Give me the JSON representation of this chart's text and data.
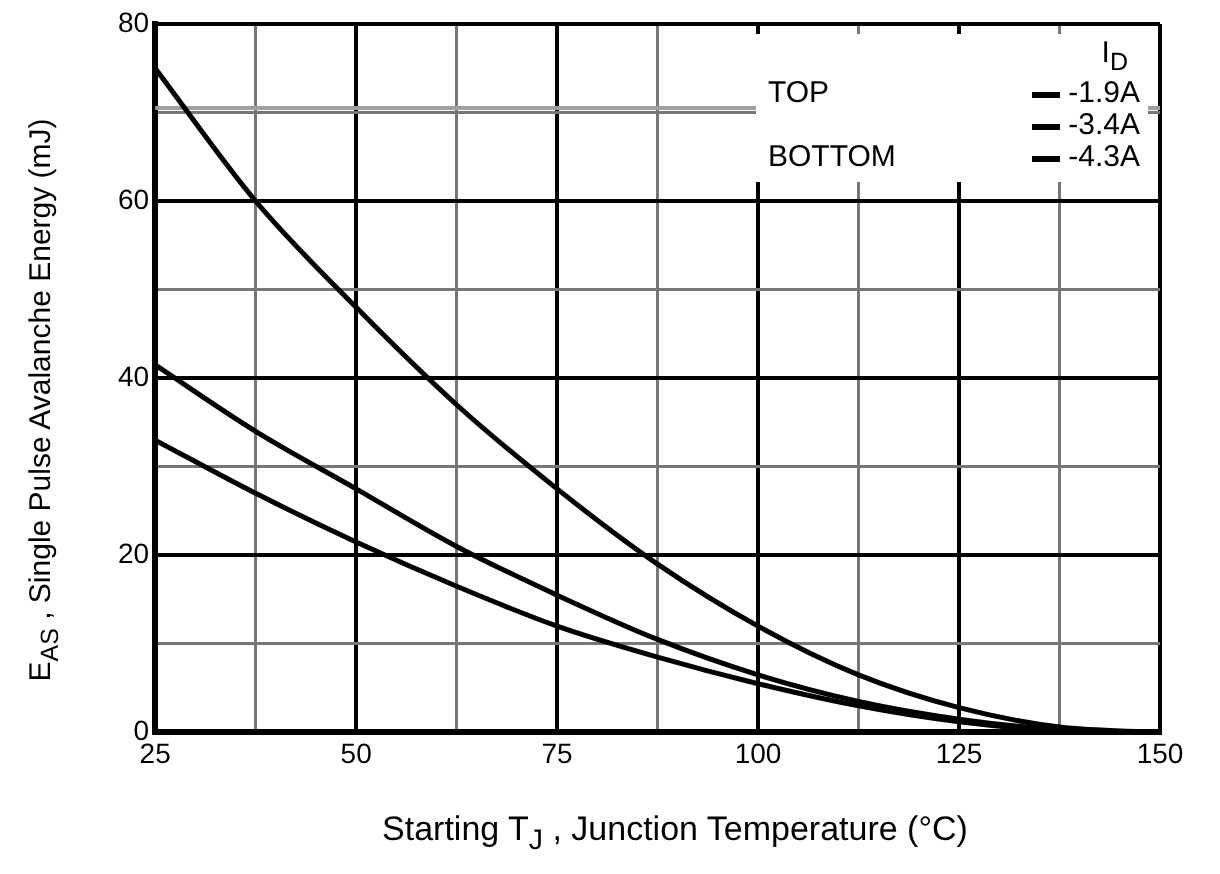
{
  "chart_data": {
    "type": "line",
    "xlabel": "Starting T$_{J}$ , Junction Temperature  (°C)",
    "ylabel": "E$_{AS}$ , Single Pulse Avalanche Energy (mJ)",
    "legend_title": "I$_{D}$",
    "legend": "top right",
    "grid": true,
    "marker": "none",
    "line_style": "solid",
    "x": [
      25,
      37.5,
      50,
      62.5,
      75,
      87.5,
      100,
      112.5,
      125,
      137.5,
      150
    ],
    "series": [
      {
        "name": "-1.9A",
        "color": "#000000",
        "values": [
          75,
          60,
          48,
          37,
          27.5,
          19,
          12,
          6.5,
          2.8,
          0.6,
          0
        ]
      },
      {
        "name": "-3.4A",
        "color": "#000000",
        "values": [
          41.5,
          34,
          27.5,
          21,
          15.5,
          10.5,
          6.5,
          3.5,
          1.5,
          0.3,
          0
        ]
      },
      {
        "name": "-4.3A",
        "color": "#000000",
        "values": [
          33,
          27,
          21.5,
          16.5,
          12,
          8.5,
          5.5,
          3,
          1.2,
          0.2,
          0
        ]
      }
    ],
    "xlim": [
      25,
      150
    ],
    "ylim": [
      0,
      80
    ],
    "xticks": [
      25,
      {
        "value": 37.5,
        "label": null
      },
      50,
      {
        "value": 62.5,
        "label": null
      },
      75,
      {
        "value": 87.5,
        "label": null
      },
      100,
      {
        "value": 112.5,
        "label": null
      },
      125,
      {
        "value": 137.5,
        "label": null
      },
      150
    ],
    "yticks": [
      0,
      {
        "value": 10,
        "label": null
      },
      20,
      {
        "value": 30,
        "label": null
      },
      40,
      {
        "value": 50,
        "label": null
      },
      60,
      {
        "value": 70,
        "label": null
      },
      80
    ],
    "ref_lines": [
      {
        "axis": "y",
        "value": 70.5,
        "color": "#a0a0a0"
      }
    ],
    "annotations": [
      "TOP",
      "BOTTOM"
    ]
  }
}
